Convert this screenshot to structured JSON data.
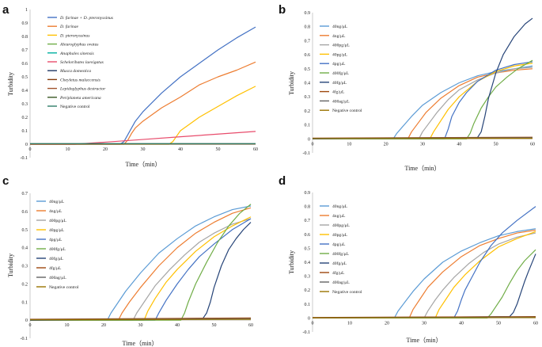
{
  "chart_data": [
    {
      "id": "a",
      "panel_label": "a",
      "type": "line",
      "xlabel": "Time（min）",
      "ylabel": "Turbidity",
      "xlim": [
        0,
        60
      ],
      "ylim": [
        -0.1,
        1
      ],
      "xticks": [
        0,
        10,
        20,
        30,
        40,
        50,
        60
      ],
      "yticks": [
        -0.1,
        0,
        0.1,
        0.2,
        0.3,
        0.4,
        0.5,
        0.6,
        0.7,
        0.8,
        0.9,
        1
      ],
      "legend": "top-left",
      "legend_italic": true,
      "series": [
        {
          "name": "D. farinae + D. pteronyssinus",
          "color": "#4472C4",
          "x": [
            0,
            24,
            25,
            26,
            27,
            28,
            30,
            35,
            40,
            45,
            50,
            55,
            60
          ],
          "y": [
            0,
            0,
            0.02,
            0.07,
            0.12,
            0.17,
            0.24,
            0.38,
            0.5,
            0.6,
            0.7,
            0.79,
            0.87
          ]
        },
        {
          "name": "D. farinae",
          "color": "#ED7D31",
          "x": [
            0,
            25,
            26,
            27,
            28,
            30,
            35,
            40,
            45,
            50,
            55,
            60
          ],
          "y": [
            0,
            0,
            0.03,
            0.08,
            0.12,
            0.17,
            0.27,
            0.35,
            0.44,
            0.5,
            0.55,
            0.61
          ]
        },
        {
          "name": "D. pteronyssinus",
          "color": "#FFC000",
          "x": [
            0,
            37,
            38,
            39,
            40,
            42,
            45,
            50,
            55,
            60
          ],
          "y": [
            0,
            0,
            0.02,
            0.06,
            0.1,
            0.14,
            0.2,
            0.28,
            0.36,
            0.43
          ]
        },
        {
          "name": "Aleuroglyphus ovatus",
          "color": "#70AD47",
          "x": [
            0,
            60
          ],
          "y": [
            0.002,
            0.002
          ]
        },
        {
          "name": "Anaphales sinensis",
          "color": "#00B0A0",
          "x": [
            0,
            60
          ],
          "y": [
            0.001,
            0.001
          ]
        },
        {
          "name": "Scheloribates laevigatus",
          "color": "#E84C6C",
          "x": [
            0,
            12,
            20,
            30,
            40,
            50,
            60
          ],
          "y": [
            0,
            0,
            0.015,
            0.035,
            0.055,
            0.075,
            0.095
          ]
        },
        {
          "name": "Musca domestica",
          "color": "#1F3864",
          "x": [
            0,
            60
          ],
          "y": [
            0.003,
            0.003
          ]
        },
        {
          "name": "Cheyletus malaccensis",
          "color": "#843C0C",
          "x": [
            0,
            60
          ],
          "y": [
            0.001,
            0.001
          ]
        },
        {
          "name": "Lepidoglyphus destructor",
          "color": "#A0522D",
          "x": [
            0,
            60
          ],
          "y": [
            0.002,
            0.002
          ]
        },
        {
          "name": "Periplaneta americana",
          "color": "#385723",
          "x": [
            0,
            60
          ],
          "y": [
            0.003,
            0.003
          ]
        },
        {
          "name": "Negative control",
          "color": "#2E7D68",
          "x": [
            0,
            60
          ],
          "y": [
            0.004,
            0.004
          ]
        }
      ]
    },
    {
      "id": "b",
      "panel_label": "b",
      "type": "line",
      "xlabel": "Time（min）",
      "ylabel": "Turbidity",
      "xlim": [
        0,
        60
      ],
      "ylim": [
        -0.1,
        0.9
      ],
      "xticks": [
        0,
        10,
        20,
        30,
        40,
        50,
        60
      ],
      "yticks": [
        -0.1,
        0,
        0.1,
        0.2,
        0.3,
        0.4,
        0.5,
        0.6,
        0.7,
        0.8,
        0.9
      ],
      "legend": "top-left",
      "legend_italic": false,
      "series": [
        {
          "name": "40ng/μL",
          "color": "#5B9BD5",
          "x": [
            0,
            22,
            23,
            25,
            27,
            30,
            35,
            40,
            45,
            50,
            55,
            60
          ],
          "y": [
            0,
            0,
            0.04,
            0.1,
            0.16,
            0.24,
            0.33,
            0.4,
            0.45,
            0.48,
            0.5,
            0.52
          ]
        },
        {
          "name": "4ng/μL",
          "color": "#ED7D31",
          "x": [
            0,
            26,
            27,
            29,
            31,
            35,
            40,
            45,
            50,
            55,
            60
          ],
          "y": [
            0,
            0,
            0.05,
            0.12,
            0.19,
            0.29,
            0.38,
            0.44,
            0.47,
            0.49,
            0.5
          ]
        },
        {
          "name": "400pg/μL",
          "color": "#A5A5A5",
          "x": [
            0,
            29,
            30,
            32,
            34,
            37,
            40,
            45,
            50,
            55,
            60
          ],
          "y": [
            0,
            0,
            0.05,
            0.12,
            0.19,
            0.28,
            0.35,
            0.42,
            0.47,
            0.5,
            0.51
          ]
        },
        {
          "name": "40pg/μL",
          "color": "#FFC000",
          "x": [
            0,
            32,
            33,
            35,
            37,
            40,
            45,
            50,
            55,
            60
          ],
          "y": [
            0,
            0,
            0.05,
            0.13,
            0.21,
            0.3,
            0.41,
            0.48,
            0.52,
            0.54
          ]
        },
        {
          "name": "4pg/μL",
          "color": "#4472C4",
          "x": [
            0,
            36,
            37,
            38,
            40,
            42,
            45,
            50,
            55,
            60
          ],
          "y": [
            0,
            0,
            0.07,
            0.16,
            0.26,
            0.33,
            0.41,
            0.49,
            0.53,
            0.55
          ]
        },
        {
          "name": "400fg/μL",
          "color": "#70AD47",
          "x": [
            0,
            42,
            43,
            44,
            46,
            48,
            50,
            53,
            56,
            60
          ],
          "y": [
            0,
            0,
            0.04,
            0.11,
            0.22,
            0.3,
            0.37,
            0.44,
            0.5,
            0.56
          ]
        },
        {
          "name": "40fg/μL",
          "color": "#264478",
          "x": [
            0,
            45,
            46,
            47,
            48,
            50,
            52,
            55,
            58,
            60
          ],
          "y": [
            0,
            0.01,
            0.05,
            0.16,
            0.29,
            0.47,
            0.6,
            0.73,
            0.82,
            0.86
          ]
        },
        {
          "name": "4fg/μL",
          "color": "#9E480E",
          "x": [
            0,
            60
          ],
          "y": [
            0.005,
            0.012
          ]
        },
        {
          "name": "400ag/μL",
          "color": "#636363",
          "x": [
            0,
            60
          ],
          "y": [
            0.003,
            0.008
          ]
        },
        {
          "name": "Negative control",
          "color": "#997300",
          "x": [
            0,
            60
          ],
          "y": [
            0.002,
            0.004
          ]
        }
      ]
    },
    {
      "id": "c",
      "panel_label": "c",
      "type": "line",
      "xlabel": "Time（min）",
      "ylabel": "Turbidity",
      "xlim": [
        0,
        60
      ],
      "ylim": [
        -0.1,
        0.7
      ],
      "xticks": [
        0,
        10,
        20,
        30,
        40,
        50,
        60
      ],
      "yticks": [
        -0.1,
        0,
        0.1,
        0.2,
        0.3,
        0.4,
        0.5,
        0.6,
        0.7
      ],
      "legend": "top-left",
      "legend_italic": false,
      "series": [
        {
          "name": "40ng/μL",
          "color": "#5B9BD5",
          "x": [
            0,
            21,
            22,
            24,
            26,
            30,
            35,
            40,
            45,
            50,
            55,
            60
          ],
          "y": [
            0,
            0,
            0.04,
            0.1,
            0.16,
            0.26,
            0.37,
            0.45,
            0.52,
            0.57,
            0.61,
            0.63
          ]
        },
        {
          "name": "4ng/μL",
          "color": "#ED7D31",
          "x": [
            0,
            24,
            25,
            27,
            30,
            35,
            40,
            45,
            50,
            55,
            60
          ],
          "y": [
            0,
            0,
            0.04,
            0.1,
            0.18,
            0.3,
            0.4,
            0.48,
            0.54,
            0.59,
            0.62
          ]
        },
        {
          "name": "400pg/μL",
          "color": "#A5A5A5",
          "x": [
            0,
            28,
            29,
            31,
            34,
            38,
            42,
            46,
            50,
            55,
            60
          ],
          "y": [
            0,
            0,
            0.04,
            0.1,
            0.19,
            0.28,
            0.36,
            0.43,
            0.48,
            0.53,
            0.56
          ]
        },
        {
          "name": "40pg/μL",
          "color": "#FFC000",
          "x": [
            0,
            31,
            32,
            34,
            37,
            40,
            45,
            50,
            55,
            60
          ],
          "y": [
            0,
            0,
            0.05,
            0.12,
            0.21,
            0.28,
            0.38,
            0.46,
            0.52,
            0.57
          ]
        },
        {
          "name": "4pg/μL",
          "color": "#4472C4",
          "x": [
            0,
            34,
            35,
            37,
            40,
            43,
            46,
            50,
            55,
            60
          ],
          "y": [
            0,
            0,
            0.04,
            0.11,
            0.2,
            0.28,
            0.35,
            0.42,
            0.5,
            0.56
          ]
        },
        {
          "name": "400fg/μL",
          "color": "#70AD47",
          "x": [
            0,
            41,
            42,
            43,
            45,
            48,
            51,
            54,
            57,
            60
          ],
          "y": [
            0,
            0,
            0.04,
            0.1,
            0.2,
            0.32,
            0.43,
            0.52,
            0.59,
            0.64
          ]
        },
        {
          "name": "40fg/μL",
          "color": "#264478",
          "x": [
            0,
            47,
            48,
            49,
            50,
            52,
            54,
            56,
            58,
            60
          ],
          "y": [
            0,
            0.01,
            0.04,
            0.1,
            0.18,
            0.3,
            0.39,
            0.45,
            0.5,
            0.54
          ]
        },
        {
          "name": "4fg/μL",
          "color": "#9E480E",
          "x": [
            0,
            60
          ],
          "y": [
            0.005,
            0.012
          ]
        },
        {
          "name": "400ag/μL",
          "color": "#636363",
          "x": [
            0,
            60
          ],
          "y": [
            0.003,
            0.008
          ]
        },
        {
          "name": "Negative control",
          "color": "#997300",
          "x": [
            0,
            60
          ],
          "y": [
            0.002,
            0.004
          ]
        }
      ]
    },
    {
      "id": "d",
      "panel_label": "d",
      "type": "line",
      "xlabel": "Time（min）",
      "ylabel": "Turbidity",
      "xlim": [
        0,
        60
      ],
      "ylim": [
        -0.1,
        0.9
      ],
      "xticks": [
        0,
        10,
        20,
        30,
        40,
        50,
        60
      ],
      "yticks": [
        -0.1,
        0,
        0.1,
        0.2,
        0.3,
        0.4,
        0.5,
        0.6,
        0.7,
        0.8,
        0.9
      ],
      "legend": "top-left",
      "legend_italic": false,
      "series": [
        {
          "name": "40ng/μL",
          "color": "#5B9BD5",
          "x": [
            0,
            22,
            23,
            25,
            27,
            30,
            35,
            40,
            45,
            50,
            55,
            60
          ],
          "y": [
            0,
            0,
            0.05,
            0.12,
            0.19,
            0.28,
            0.4,
            0.48,
            0.54,
            0.59,
            0.62,
            0.64
          ]
        },
        {
          "name": "4ng/μL",
          "color": "#ED7D31",
          "x": [
            0,
            26,
            27,
            29,
            31,
            35,
            40,
            45,
            50,
            55,
            60
          ],
          "y": [
            0,
            0,
            0.06,
            0.14,
            0.22,
            0.33,
            0.44,
            0.52,
            0.57,
            0.61,
            0.63
          ]
        },
        {
          "name": "400pg/μL",
          "color": "#A5A5A5",
          "x": [
            0,
            30,
            31,
            33,
            35,
            38,
            42,
            46,
            50,
            55,
            60
          ],
          "y": [
            0,
            0,
            0.05,
            0.13,
            0.2,
            0.29,
            0.39,
            0.47,
            0.53,
            0.58,
            0.61
          ]
        },
        {
          "name": "40pg/μL",
          "color": "#FFC000",
          "x": [
            0,
            33,
            34,
            36,
            38,
            41,
            45,
            50,
            55,
            60
          ],
          "y": [
            0,
            0,
            0.06,
            0.14,
            0.22,
            0.31,
            0.41,
            0.51,
            0.57,
            0.62
          ]
        },
        {
          "name": "4pg/μL",
          "color": "#4472C4",
          "x": [
            0,
            38,
            39,
            40,
            41,
            43,
            45,
            48,
            51,
            55,
            60
          ],
          "y": [
            0,
            0,
            0.05,
            0.13,
            0.2,
            0.3,
            0.4,
            0.52,
            0.61,
            0.7,
            0.8
          ]
        },
        {
          "name": "400fg/μL",
          "color": "#70AD47",
          "x": [
            0,
            47,
            48,
            49,
            51,
            53,
            55,
            57,
            60
          ],
          "y": [
            0,
            0,
            0.03,
            0.07,
            0.15,
            0.25,
            0.34,
            0.41,
            0.49
          ]
        },
        {
          "name": "40fg/μL",
          "color": "#264478",
          "x": [
            0,
            53,
            54,
            55,
            56,
            57,
            58,
            60
          ],
          "y": [
            0,
            0.01,
            0.04,
            0.1,
            0.18,
            0.26,
            0.33,
            0.46
          ]
        },
        {
          "name": "4fg/μL",
          "color": "#9E480E",
          "x": [
            0,
            60
          ],
          "y": [
            0.004,
            0.01
          ]
        },
        {
          "name": "400ag/μL",
          "color": "#636363",
          "x": [
            0,
            60
          ],
          "y": [
            0.002,
            0.006
          ]
        },
        {
          "name": "Negative control",
          "color": "#997300",
          "x": [
            0,
            60
          ],
          "y": [
            0.001,
            0.003
          ]
        }
      ]
    }
  ]
}
